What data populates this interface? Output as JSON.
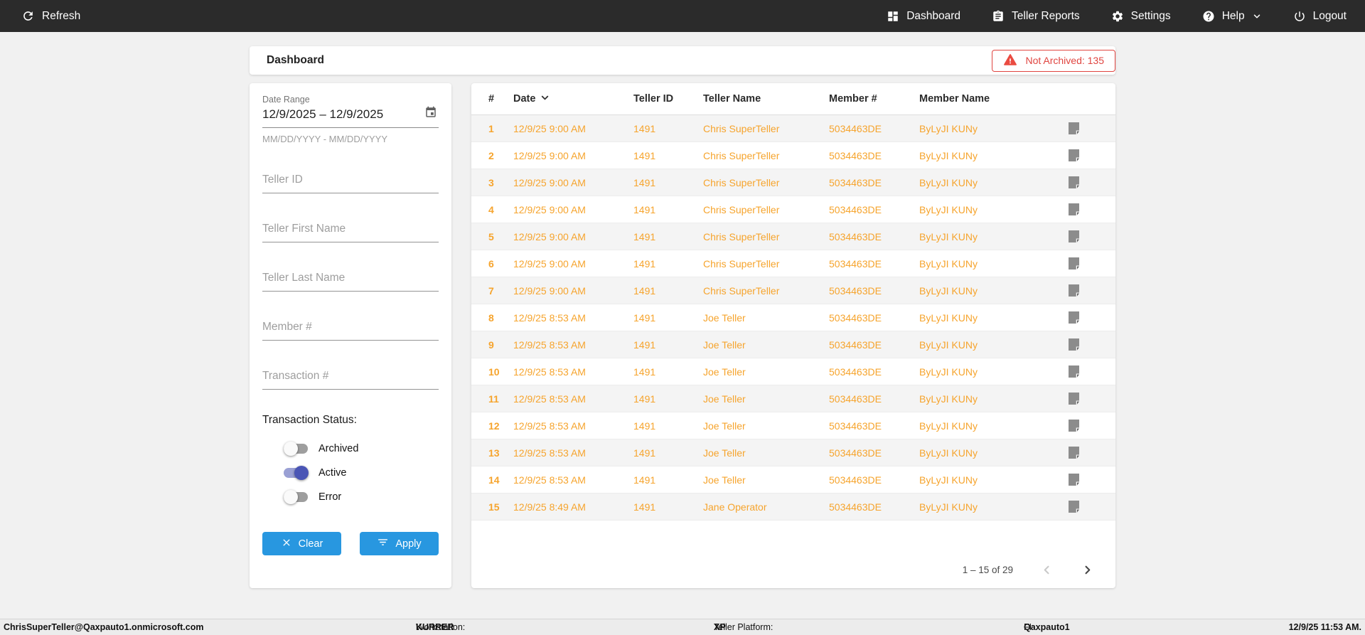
{
  "navbar": {
    "refresh_label": "Refresh",
    "items": [
      {
        "label": "Dashboard"
      },
      {
        "label": "Teller Reports"
      },
      {
        "label": "Settings"
      },
      {
        "label": "Help"
      },
      {
        "label": "Logout"
      }
    ]
  },
  "header": {
    "title": "Dashboard",
    "badge_label": "Not Archived: 135"
  },
  "filters": {
    "date_range": {
      "label": "Date Range",
      "value": "12/9/2025 – 12/9/2025",
      "helper": "MM/DD/YYYY - MM/DD/YYYY"
    },
    "fields": [
      {
        "name": "teller-id-input",
        "placeholder": "Teller ID"
      },
      {
        "name": "teller-first-name-input",
        "placeholder": "Teller First Name"
      },
      {
        "name": "teller-last-name-input",
        "placeholder": "Teller Last Name"
      },
      {
        "name": "member-number-input",
        "placeholder": "Member #"
      },
      {
        "name": "transaction-number-input",
        "placeholder": "Transaction #"
      }
    ],
    "status": {
      "label": "Transaction Status:",
      "toggles": [
        {
          "label": "Archived",
          "on": false
        },
        {
          "label": "Active",
          "on": true
        },
        {
          "label": "Error",
          "on": false
        }
      ]
    },
    "clear_label": "Clear",
    "apply_label": "Apply"
  },
  "table": {
    "columns": [
      "#",
      "Date",
      "Teller ID",
      "Teller Name",
      "Member #",
      "Member Name"
    ],
    "rows": [
      {
        "num": "1",
        "date": "12/9/25 9:00 AM",
        "teller_id": "1491",
        "teller_name": "Chris SuperTeller",
        "member_num": "5034463DE",
        "member_name": "ByLyJI KUNy"
      },
      {
        "num": "2",
        "date": "12/9/25 9:00 AM",
        "teller_id": "1491",
        "teller_name": "Chris SuperTeller",
        "member_num": "5034463DE",
        "member_name": "ByLyJI KUNy"
      },
      {
        "num": "3",
        "date": "12/9/25 9:00 AM",
        "teller_id": "1491",
        "teller_name": "Chris SuperTeller",
        "member_num": "5034463DE",
        "member_name": "ByLyJI KUNy"
      },
      {
        "num": "4",
        "date": "12/9/25 9:00 AM",
        "teller_id": "1491",
        "teller_name": "Chris SuperTeller",
        "member_num": "5034463DE",
        "member_name": "ByLyJI KUNy"
      },
      {
        "num": "5",
        "date": "12/9/25 9:00 AM",
        "teller_id": "1491",
        "teller_name": "Chris SuperTeller",
        "member_num": "5034463DE",
        "member_name": "ByLyJI KUNy"
      },
      {
        "num": "6",
        "date": "12/9/25 9:00 AM",
        "teller_id": "1491",
        "teller_name": "Chris SuperTeller",
        "member_num": "5034463DE",
        "member_name": "ByLyJI KUNy"
      },
      {
        "num": "7",
        "date": "12/9/25 9:00 AM",
        "teller_id": "1491",
        "teller_name": "Chris SuperTeller",
        "member_num": "5034463DE",
        "member_name": "ByLyJI KUNy"
      },
      {
        "num": "8",
        "date": "12/9/25 8:53 AM",
        "teller_id": "1491",
        "teller_name": "Joe Teller",
        "member_num": "5034463DE",
        "member_name": "ByLyJI KUNy"
      },
      {
        "num": "9",
        "date": "12/9/25 8:53 AM",
        "teller_id": "1491",
        "teller_name": "Joe Teller",
        "member_num": "5034463DE",
        "member_name": "ByLyJI KUNy"
      },
      {
        "num": "10",
        "date": "12/9/25 8:53 AM",
        "teller_id": "1491",
        "teller_name": "Joe Teller",
        "member_num": "5034463DE",
        "member_name": "ByLyJI KUNy"
      },
      {
        "num": "11",
        "date": "12/9/25 8:53 AM",
        "teller_id": "1491",
        "teller_name": "Joe Teller",
        "member_num": "5034463DE",
        "member_name": "ByLyJI KUNy"
      },
      {
        "num": "12",
        "date": "12/9/25 8:53 AM",
        "teller_id": "1491",
        "teller_name": "Joe Teller",
        "member_num": "5034463DE",
        "member_name": "ByLyJI KUNy"
      },
      {
        "num": "13",
        "date": "12/9/25 8:53 AM",
        "teller_id": "1491",
        "teller_name": "Joe Teller",
        "member_num": "5034463DE",
        "member_name": "ByLyJI KUNy"
      },
      {
        "num": "14",
        "date": "12/9/25 8:53 AM",
        "teller_id": "1491",
        "teller_name": "Joe Teller",
        "member_num": "5034463DE",
        "member_name": "ByLyJI KUNy"
      },
      {
        "num": "15",
        "date": "12/9/25 8:49 AM",
        "teller_id": "1491",
        "teller_name": "Jane Operator",
        "member_num": "5034463DE",
        "member_name": "ByLyJI KUNy"
      }
    ],
    "pagination": {
      "range": "1 – 15 of 29"
    }
  },
  "footer": {
    "user": "ChrisSuperTeller@Qaxpauto1.onmicrosoft.com",
    "workstation_label": "Workstation:",
    "workstation": "KURRER",
    "platform_label": "Teller Platform:",
    "platform": "XP",
    "fi_label": "FI:",
    "fi": "Qaxpauto1",
    "time": "12/9/25 11:53 AM."
  },
  "colors": {
    "navbar_bg": "#2b2b2b",
    "row_text_orange": "#f6a42d",
    "alert_red": "#e04540",
    "button_blue": "#2897e0",
    "toggle_on_thumb": "#4a55b5",
    "toggle_on_track": "#9aa0d4"
  }
}
